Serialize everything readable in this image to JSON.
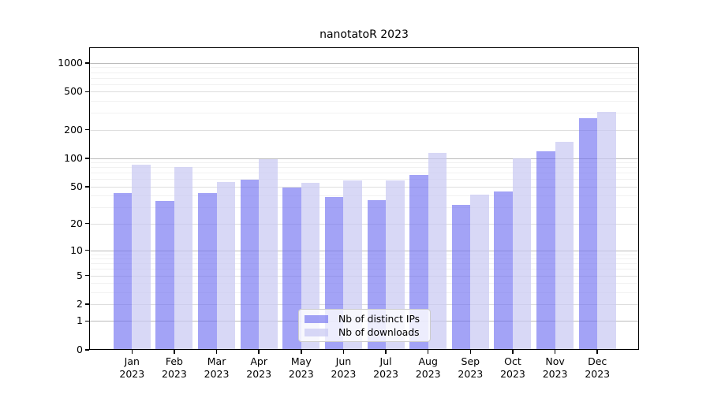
{
  "title": {
    "text": "nanotatoR 2023"
  },
  "chart_data": {
    "type": "bar",
    "title": "nanotatoR 2023",
    "categories": [
      "Jan",
      "Feb",
      "Mar",
      "Apr",
      "May",
      "Jun",
      "Jul",
      "Aug",
      "Sep",
      "Oct",
      "Nov",
      "Dec"
    ],
    "category_year": "2023",
    "series": [
      {
        "name": "Nb of distinct IPs",
        "color": "#a6a6f5",
        "fill": "rgba(110,110,240,0.63)",
        "values": [
          43,
          35,
          43,
          59,
          49,
          39,
          36,
          66,
          32,
          44,
          118,
          266
        ]
      },
      {
        "name": "Nb of downloads",
        "color": "#d9d9f7",
        "fill": "rgba(200,200,242,0.70)",
        "values": [
          85,
          80,
          56,
          97,
          55,
          58,
          58,
          113,
          41,
          100,
          150,
          310
        ]
      }
    ],
    "yscale": "log1p",
    "ylim": [
      0,
      1460
    ],
    "yticks": [
      0,
      1,
      2,
      5,
      10,
      20,
      50,
      100,
      200,
      500,
      1000
    ],
    "yticks_minor": [
      3,
      4,
      6,
      7,
      8,
      9,
      30,
      40,
      60,
      70,
      80,
      90,
      300,
      400,
      600,
      700,
      800,
      900
    ],
    "grid": true,
    "legend_position": "lower-center"
  },
  "colors": {
    "background": "#ffffff",
    "axis": "#000000",
    "grid_decade": "#bbbbbb",
    "grid_tick": "#dedede",
    "grid_minor": "#f1f1f1",
    "legend_border": "#cccccc"
  }
}
